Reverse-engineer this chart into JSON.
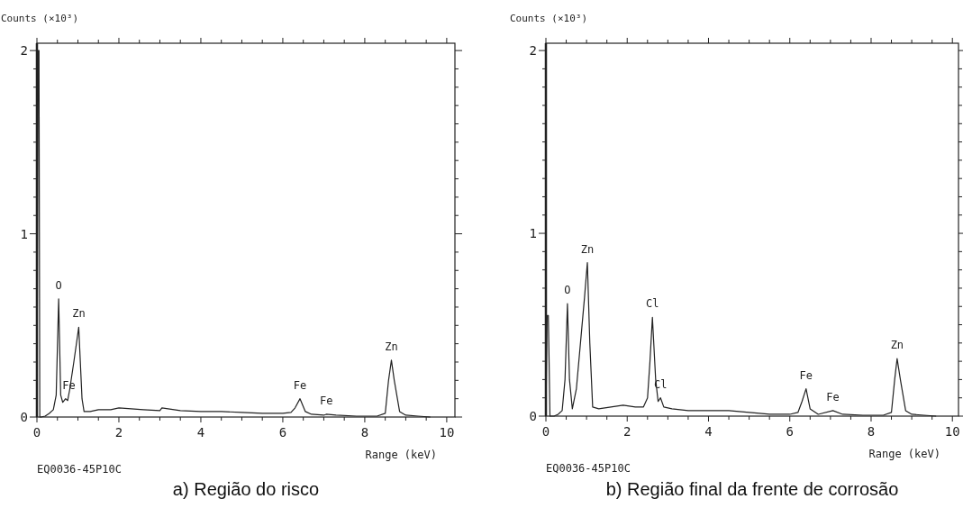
{
  "chart_data": [
    {
      "type": "line",
      "title": "a) Região do risco",
      "xlabel": "Range (keV)",
      "ylabel": "Counts (×10³)",
      "xlim": [
        0,
        10.2
      ],
      "ylim": [
        0,
        2.04
      ],
      "xticks": [
        0,
        {
          "value": 0.5,
          "label": null
        },
        {
          "value": 1,
          "label": null
        },
        {
          "value": 1.5,
          "label": null
        },
        2,
        {
          "value": 2.5,
          "label": null
        },
        {
          "value": 3,
          "label": null
        },
        {
          "value": 3.5,
          "label": null
        },
        4,
        {
          "value": 4.5,
          "label": null
        },
        {
          "value": 5,
          "label": null
        },
        {
          "value": 5.5,
          "label": null
        },
        6,
        {
          "value": 6.5,
          "label": null
        },
        {
          "value": 7,
          "label": null
        },
        {
          "value": 7.5,
          "label": null
        },
        8,
        {
          "value": 8.5,
          "label": null
        },
        {
          "value": 9,
          "label": null
        },
        {
          "value": 9.5,
          "label": null
        },
        10
      ],
      "yticks": [
        0,
        {
          "value": 0.1,
          "label": null
        },
        {
          "value": 0.2,
          "label": null
        },
        {
          "value": 0.3,
          "label": null
        },
        {
          "value": 0.4,
          "label": null
        },
        {
          "value": 0.5,
          "label": null
        },
        {
          "value": 0.6,
          "label": null
        },
        {
          "value": 0.7,
          "label": null
        },
        {
          "value": 0.8,
          "label": null
        },
        {
          "value": 0.9,
          "label": null
        },
        1,
        {
          "value": 1.1,
          "label": null
        },
        {
          "value": 1.2,
          "label": null
        },
        {
          "value": 1.3,
          "label": null
        },
        {
          "value": 1.4,
          "label": null
        },
        {
          "value": 1.5,
          "label": null
        },
        {
          "value": 1.6,
          "label": null
        },
        {
          "value": 1.7,
          "label": null
        },
        {
          "value": 1.8,
          "label": null
        },
        {
          "value": 1.9,
          "label": null
        },
        2
      ],
      "grid": false,
      "marker": "none",
      "line_style": "solid",
      "series": [
        {
          "color": "#222222",
          "x": [
            0,
            0.03,
            0.05,
            0.07,
            0.1,
            0.2,
            0.3,
            0.4,
            0.47,
            0.53,
            0.58,
            0.63,
            0.7,
            0.75,
            0.8,
            0.9,
            1.02,
            1.1,
            1.15,
            1.3,
            1.5,
            1.8,
            2.0,
            2.3,
            2.6,
            3.0,
            3.05,
            3.5,
            4.0,
            4.5,
            5.0,
            5.5,
            6.0,
            6.2,
            6.3,
            6.42,
            6.55,
            6.7,
            7.0,
            7.06,
            7.3,
            7.8,
            8.3,
            8.5,
            8.58,
            8.65,
            8.72,
            8.85,
            9.0,
            9.3,
            9.6
          ],
          "values": [
            0,
            2.0,
            2.0,
            0,
            0,
            0.005,
            0.02,
            0.04,
            0.12,
            0.645,
            0.12,
            0.08,
            0.1,
            0.09,
            0.15,
            0.3,
            0.49,
            0.1,
            0.03,
            0.03,
            0.04,
            0.04,
            0.05,
            0.045,
            0.04,
            0.035,
            0.05,
            0.035,
            0.03,
            0.03,
            0.025,
            0.02,
            0.02,
            0.025,
            0.05,
            0.1,
            0.03,
            0.015,
            0.01,
            0.015,
            0.01,
            0.005,
            0.005,
            0.02,
            0.2,
            0.31,
            0.2,
            0.03,
            0.01,
            0.005,
            0
          ]
        }
      ],
      "annotations": [
        {
          "text": "O",
          "x": 0.53,
          "y": 0.645
        },
        {
          "text": "Fe",
          "x": 0.78,
          "y": 0.1
        },
        {
          "text": "Zn",
          "x": 1.02,
          "y": 0.49
        },
        {
          "text": "Fe",
          "x": 6.42,
          "y": 0.1
        },
        {
          "text": "Fe",
          "x": 7.06,
          "y": 0.015
        },
        {
          "text": "Zn",
          "x": 8.65,
          "y": 0.31
        },
        "EQ0036-45P10C"
      ]
    },
    {
      "type": "line",
      "title": "b) Região final da frente de corrosão",
      "xlabel": "Range (keV)",
      "ylabel": "Counts (×10³)",
      "xlim": [
        0,
        10.15
      ],
      "ylim": [
        0,
        2.04
      ],
      "xticks": [
        0,
        {
          "value": 0.5,
          "label": null
        },
        {
          "value": 1,
          "label": null
        },
        {
          "value": 1.5,
          "label": null
        },
        2,
        {
          "value": 2.5,
          "label": null
        },
        {
          "value": 3,
          "label": null
        },
        {
          "value": 3.5,
          "label": null
        },
        4,
        {
          "value": 4.5,
          "label": null
        },
        {
          "value": 5,
          "label": null
        },
        {
          "value": 5.5,
          "label": null
        },
        6,
        {
          "value": 6.5,
          "label": null
        },
        {
          "value": 7,
          "label": null
        },
        {
          "value": 7.5,
          "label": null
        },
        8,
        {
          "value": 8.5,
          "label": null
        },
        {
          "value": 9,
          "label": null
        },
        {
          "value": 9.5,
          "label": null
        },
        10
      ],
      "yticks": [
        0,
        {
          "value": 0.1,
          "label": null
        },
        {
          "value": 0.2,
          "label": null
        },
        {
          "value": 0.3,
          "label": null
        },
        {
          "value": 0.4,
          "label": null
        },
        {
          "value": 0.5,
          "label": null
        },
        {
          "value": 0.6,
          "label": null
        },
        {
          "value": 0.7,
          "label": null
        },
        {
          "value": 0.8,
          "label": null
        },
        {
          "value": 0.9,
          "label": null
        },
        1,
        {
          "value": 1.1,
          "label": null
        },
        {
          "value": 1.2,
          "label": null
        },
        {
          "value": 1.3,
          "label": null
        },
        {
          "value": 1.4,
          "label": null
        },
        {
          "value": 1.5,
          "label": null
        },
        {
          "value": 1.6,
          "label": null
        },
        {
          "value": 1.7,
          "label": null
        },
        {
          "value": 1.8,
          "label": null
        },
        {
          "value": 1.9,
          "label": null
        },
        2
      ],
      "grid": false,
      "marker": "none",
      "line_style": "solid",
      "series": [
        {
          "color": "#222222",
          "x": [
            0,
            0.03,
            0.06,
            0.1,
            0.2,
            0.3,
            0.4,
            0.47,
            0.53,
            0.58,
            0.65,
            0.75,
            0.85,
            0.95,
            1.02,
            1.08,
            1.15,
            1.3,
            1.6,
            1.9,
            2.2,
            2.4,
            2.5,
            2.56,
            2.62,
            2.7,
            2.76,
            2.82,
            2.9,
            3.1,
            3.5,
            4.0,
            4.5,
            5.0,
            5.5,
            6.0,
            6.2,
            6.3,
            6.4,
            6.5,
            6.7,
            7.06,
            7.3,
            7.8,
            8.3,
            8.5,
            8.58,
            8.64,
            8.72,
            8.85,
            9.0,
            9.3,
            9.6
          ],
          "values": [
            0,
            0.55,
            0.55,
            0,
            0,
            0.01,
            0.03,
            0.2,
            0.615,
            0.2,
            0.04,
            0.15,
            0.4,
            0.65,
            0.84,
            0.4,
            0.05,
            0.04,
            0.05,
            0.06,
            0.05,
            0.05,
            0.1,
            0.3,
            0.54,
            0.2,
            0.08,
            0.1,
            0.05,
            0.04,
            0.03,
            0.03,
            0.03,
            0.02,
            0.01,
            0.01,
            0.02,
            0.08,
            0.15,
            0.04,
            0.01,
            0.03,
            0.01,
            0.005,
            0.005,
            0.02,
            0.2,
            0.315,
            0.2,
            0.03,
            0.01,
            0.005,
            0
          ]
        }
      ],
      "annotations": [
        {
          "text": "O",
          "x": 0.53,
          "y": 0.615
        },
        {
          "text": "Zn",
          "x": 1.02,
          "y": 0.84
        },
        {
          "text": "Cl",
          "x": 2.62,
          "y": 0.54
        },
        {
          "text": "Cl",
          "x": 2.82,
          "y": 0.1
        },
        {
          "text": "Fe",
          "x": 6.4,
          "y": 0.15
        },
        {
          "text": "Fe",
          "x": 7.06,
          "y": 0.03
        },
        {
          "text": "Zn",
          "x": 8.64,
          "y": 0.315
        },
        "EQ0036-45P10C"
      ]
    }
  ]
}
